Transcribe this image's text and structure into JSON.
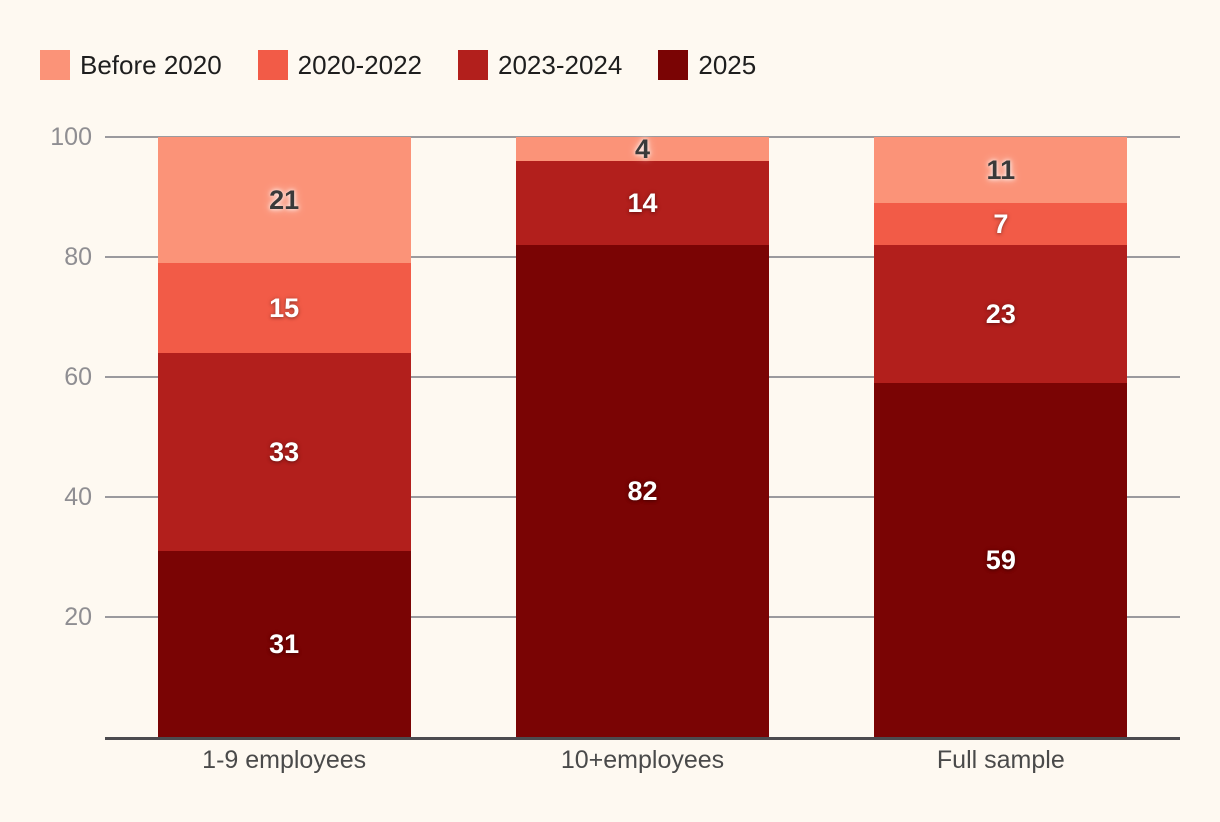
{
  "background": "#FEF9F1",
  "colors": {
    "grid": "#9B9A9E",
    "axis": "#4C4B4F",
    "ytick_text": "#8F8E92",
    "xtick_text": "#4A4A4A",
    "legend_text": "#1E1E1E"
  },
  "chart_data": {
    "type": "bar",
    "stacked": true,
    "title": "",
    "xlabel": "",
    "ylabel": "",
    "categories": [
      "1-9 employees",
      "10+employees",
      "Full sample"
    ],
    "series": [
      {
        "name": "Before 2020",
        "color": "#FB9378",
        "label_color": "#3A3A3A",
        "values": [
          21,
          4,
          11
        ]
      },
      {
        "name": "2020-2022",
        "color": "#F25B47",
        "label_color": "#FFFFFF",
        "values": [
          15,
          0,
          7
        ]
      },
      {
        "name": "2023-2024",
        "color": "#B21F1C",
        "label_color": "#FFFFFF",
        "values": [
          33,
          14,
          23
        ]
      },
      {
        "name": "2025",
        "color": "#7A0404",
        "label_color": "#FFFFFF",
        "values": [
          31,
          82,
          59
        ]
      }
    ],
    "stack_bottom_to_top": [
      "2025",
      "2023-2024",
      "2020-2022",
      "Before 2020"
    ],
    "ylim": [
      0,
      100
    ],
    "yticks": [
      20,
      40,
      60,
      80,
      100
    ],
    "grid": true,
    "legend_position": "top-left"
  }
}
